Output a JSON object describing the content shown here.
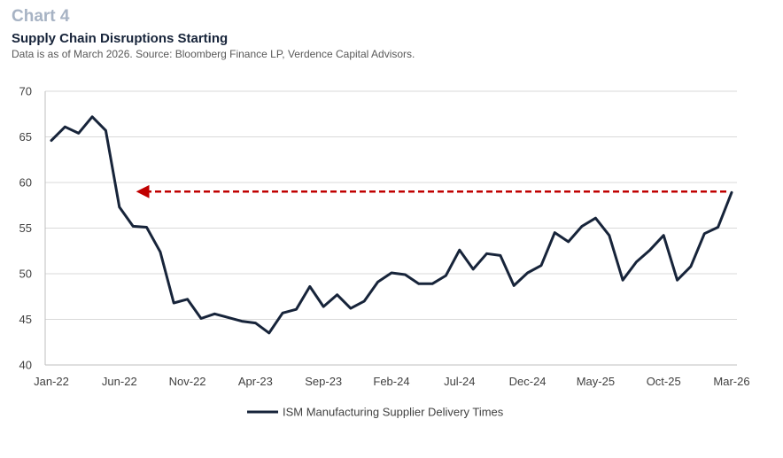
{
  "header": {
    "chart_number": "Chart 4",
    "title": "Supply Chain Disruptions Starting",
    "source": "Data is as of March 2026. Source: Bloomberg Finance LP, Verdence Capital Advisors."
  },
  "colors": {
    "series": "#17243a",
    "arrow": "#c00000",
    "grid": "#d9d9d9",
    "axis": "#bfbfbf"
  },
  "chart_data": {
    "type": "line",
    "title": "Supply Chain Disruptions Starting",
    "xlabel": "",
    "ylabel": "",
    "ylim": [
      40,
      70
    ],
    "yticks": [
      40,
      45,
      50,
      55,
      60,
      65,
      70
    ],
    "grid": true,
    "legend_position": "bottom",
    "x_tick_labels": [
      "Jan-22",
      "Jun-22",
      "Nov-22",
      "Apr-23",
      "Sep-23",
      "Feb-24",
      "Jul-24",
      "Dec-24",
      "May-25",
      "Oct-25",
      "Mar-26"
    ],
    "series": [
      {
        "name": "ISM Manufacturing Supplier Delivery Times",
        "x": [
          "Jan-22",
          "Feb-22",
          "Mar-22",
          "Apr-22",
          "May-22",
          "Jun-22",
          "Jul-22",
          "Aug-22",
          "Sep-22",
          "Oct-22",
          "Nov-22",
          "Dec-22",
          "Jan-23",
          "Feb-23",
          "Mar-23",
          "Apr-23",
          "May-23",
          "Jun-23",
          "Jul-23",
          "Aug-23",
          "Sep-23",
          "Oct-23",
          "Nov-23",
          "Dec-23",
          "Jan-24",
          "Feb-24",
          "Mar-24",
          "Apr-24",
          "May-24",
          "Jun-24",
          "Jul-24",
          "Aug-24",
          "Sep-24",
          "Oct-24",
          "Nov-24",
          "Dec-24",
          "Jan-25",
          "Feb-25",
          "Mar-25",
          "Apr-25",
          "May-25",
          "Jun-25",
          "Jul-25",
          "Aug-25",
          "Sep-25",
          "Oct-25",
          "Nov-25",
          "Dec-25",
          "Jan-26",
          "Feb-26",
          "Mar-26"
        ],
        "values": [
          64.6,
          66.1,
          65.4,
          67.2,
          65.7,
          57.3,
          55.2,
          55.1,
          52.4,
          46.8,
          47.2,
          45.1,
          45.6,
          45.2,
          44.8,
          44.6,
          43.5,
          45.7,
          46.1,
          48.6,
          46.4,
          47.7,
          46.2,
          47.0,
          49.1,
          50.1,
          49.9,
          48.9,
          48.9,
          49.8,
          52.6,
          50.5,
          52.2,
          52.0,
          48.7,
          50.1,
          50.9,
          54.5,
          53.5,
          55.2,
          56.1,
          54.2,
          49.3,
          51.3,
          52.6,
          54.2,
          49.3,
          50.8,
          54.4,
          55.1,
          58.9
        ]
      }
    ],
    "annotations": [
      {
        "type": "dashed-arrow",
        "from_x": "Mar-26",
        "to_x": "Jul-22",
        "y": 59.0,
        "color": "#c00000"
      }
    ]
  }
}
